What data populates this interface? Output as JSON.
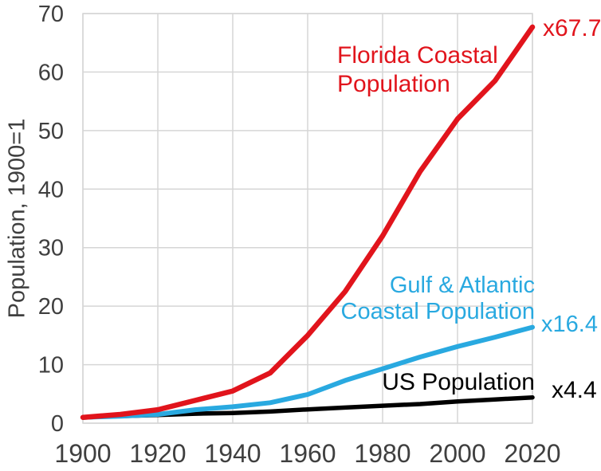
{
  "chart_data": {
    "type": "line",
    "title": "",
    "xlabel": "",
    "ylabel": "Population, 1900=1",
    "xlim": [
      1900,
      2020
    ],
    "ylim": [
      0,
      70
    ],
    "grid": true,
    "legend_position": "inline-annotations",
    "x_tick_labels": [
      "1900",
      "1920",
      "1940",
      "1960",
      "1980",
      "2000",
      "2020"
    ],
    "y_tick_labels": [
      "0",
      "10",
      "20",
      "30",
      "40",
      "50",
      "60",
      "70"
    ],
    "x": [
      1900,
      1910,
      1920,
      1930,
      1940,
      1950,
      1960,
      1970,
      1980,
      1990,
      2000,
      2010,
      2020
    ],
    "series": [
      {
        "name": "US Population",
        "color": "#000000",
        "end_label": "x4.4",
        "values": [
          1,
          1.21,
          1.39,
          1.62,
          1.74,
          1.99,
          2.36,
          2.67,
          2.98,
          3.27,
          3.7,
          4.06,
          4.4
        ]
      },
      {
        "name": "Gulf & Atlantic Coastal Population",
        "color": "#29a9e0",
        "end_label": "x16.4",
        "values": [
          1,
          1.2,
          1.5,
          2.3,
          2.8,
          3.5,
          4.9,
          7.3,
          9.3,
          11.3,
          13.1,
          14.7,
          16.4
        ]
      },
      {
        "name": "Florida Coastal Population",
        "color": "#e1141c",
        "end_label": "x67.7",
        "values": [
          1,
          1.5,
          2.3,
          3.9,
          5.5,
          8.6,
          15,
          22.5,
          32,
          43,
          52,
          58.5,
          67.7
        ]
      }
    ]
  },
  "annotations": {
    "florida": {
      "line1": "Florida Coastal",
      "line2": "Population",
      "end_label": "x67.7"
    },
    "gulf": {
      "line1": "Gulf & Atlantic",
      "line2": "Coastal Population",
      "end_label": "x16.4"
    },
    "us": {
      "line1": "US Population",
      "end_label": "x4.4"
    }
  },
  "colors": {
    "florida_series": "#e1141c",
    "gulf_series": "#29a9e0",
    "us_series": "#000000",
    "gridline": "#d6d6d6",
    "axis_text": "#3f3f3f",
    "background": "#ffffff"
  }
}
